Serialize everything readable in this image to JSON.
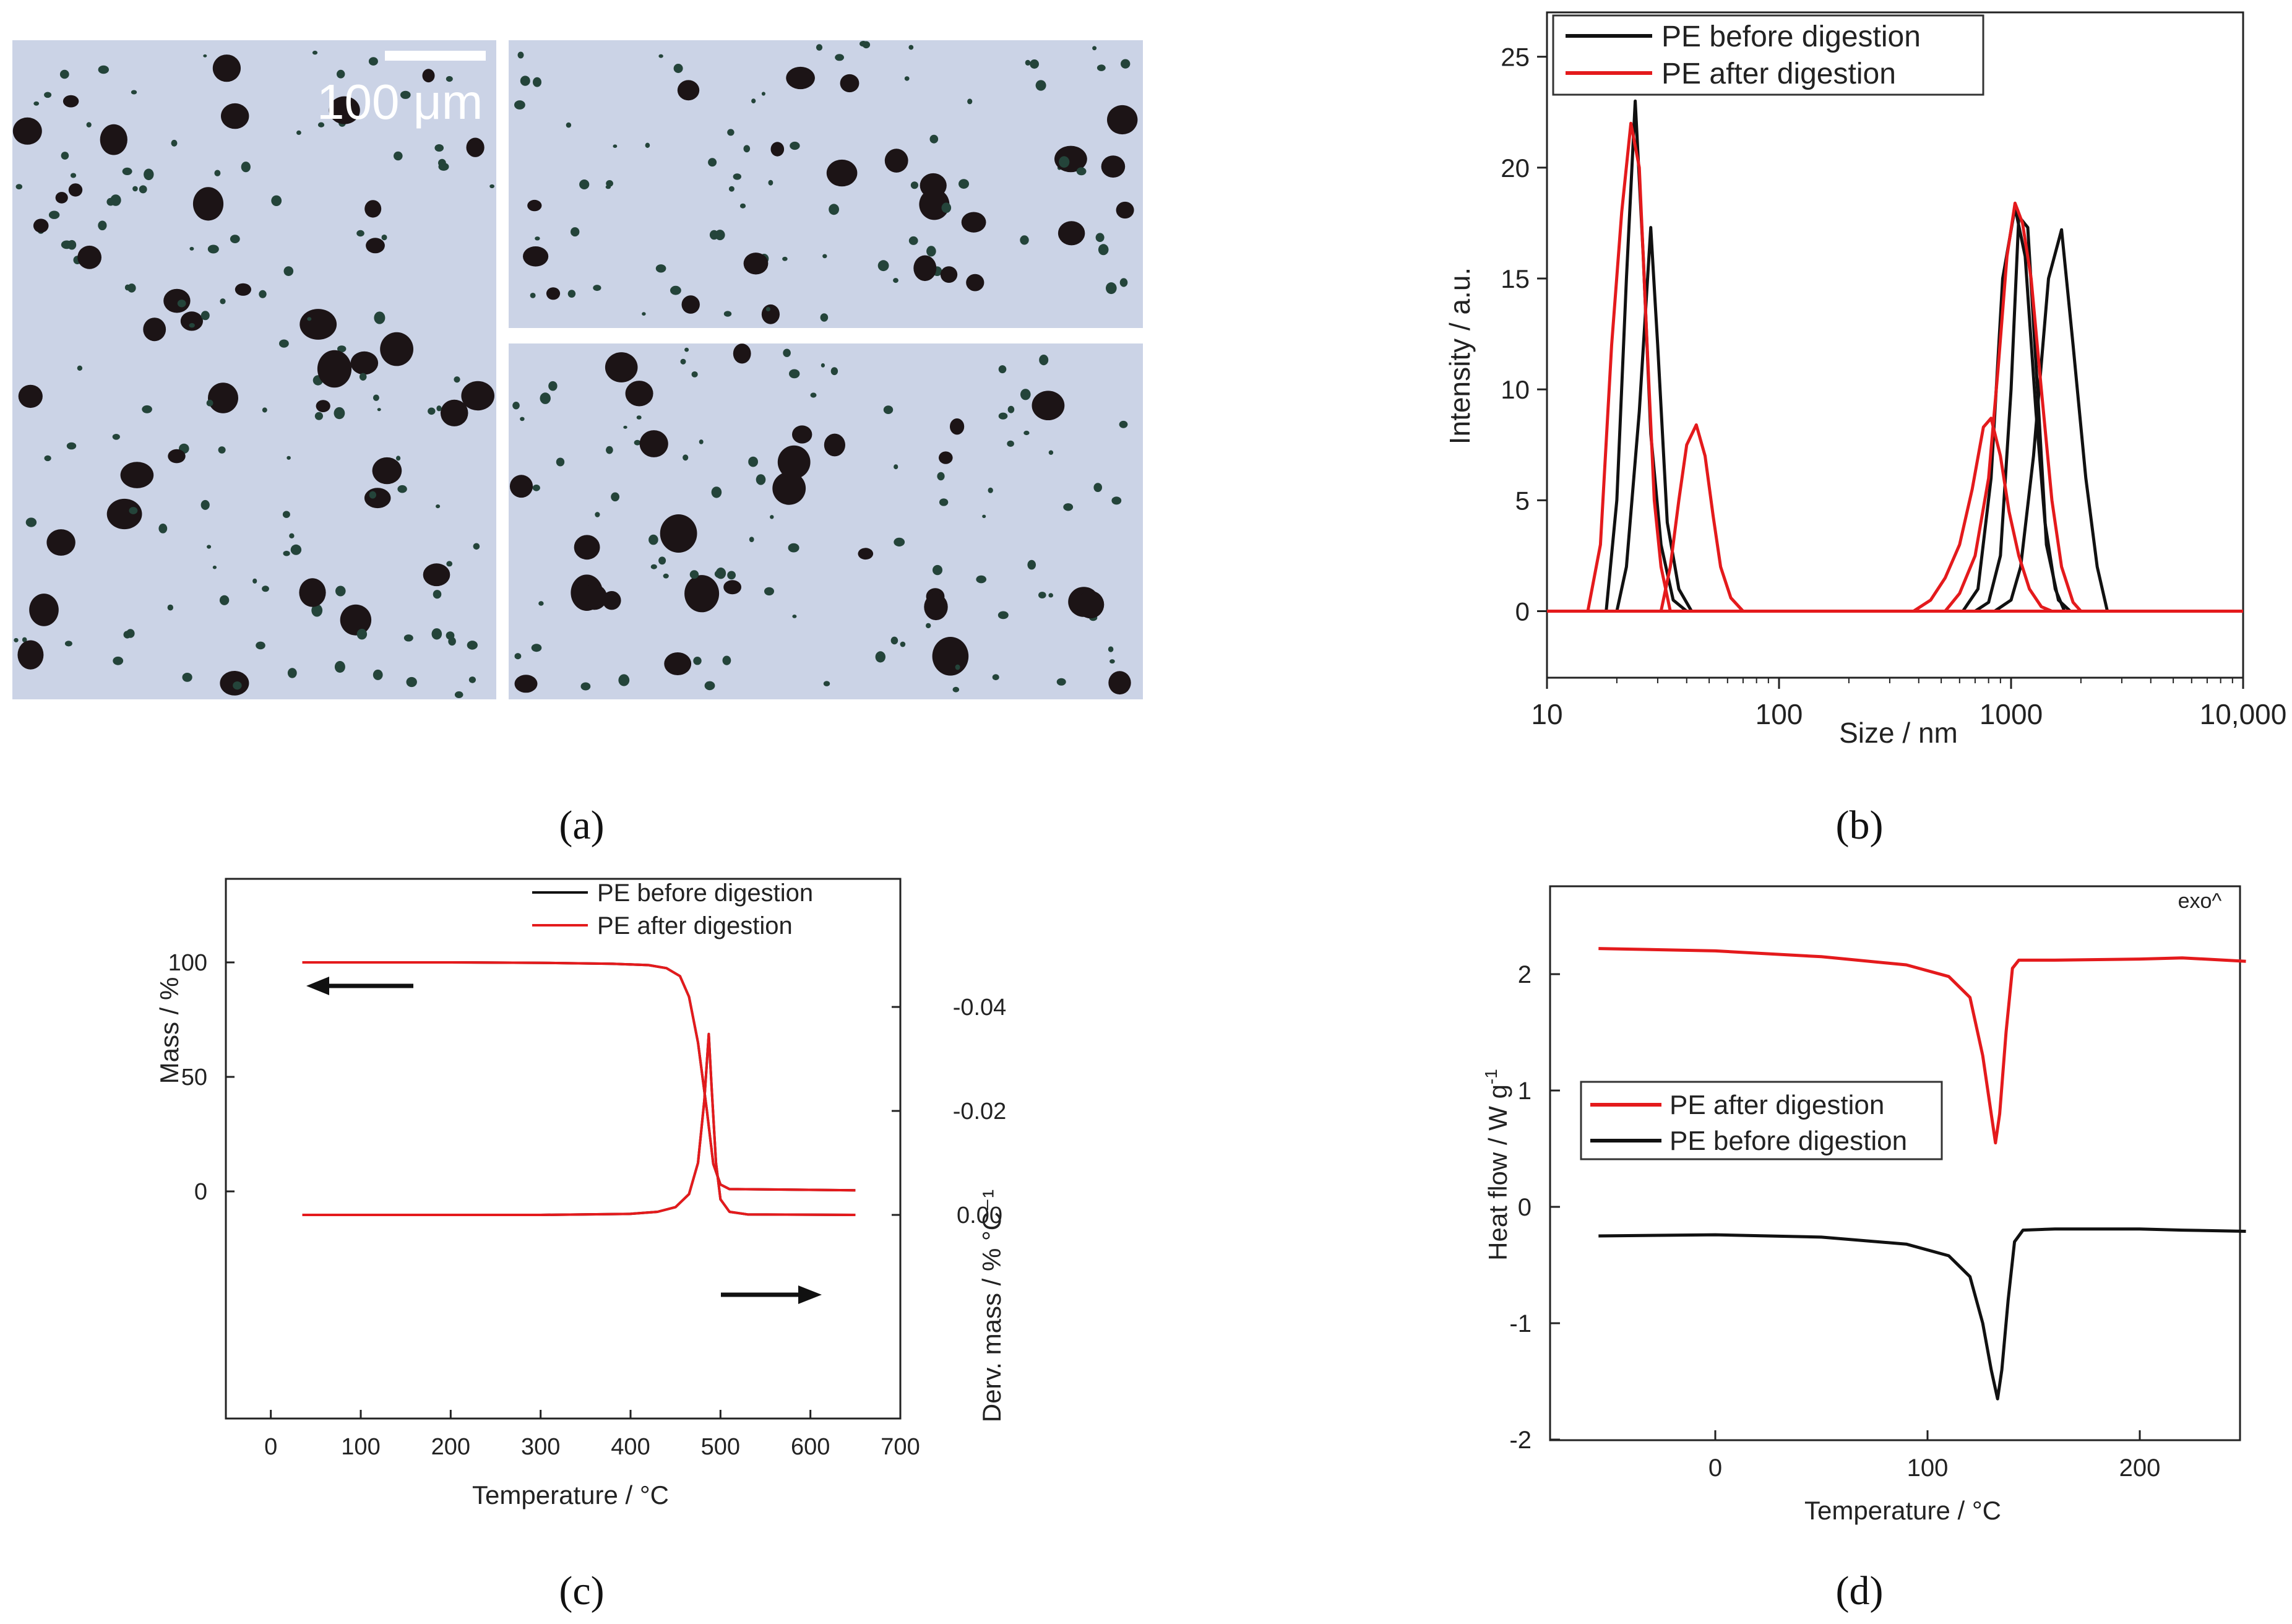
{
  "panel_labels": [
    "(a)",
    "(b)",
    "(c)",
    "(d)"
  ],
  "micrograph": {
    "scale_label": "100 μm",
    "background": "#cbd3e6",
    "particle_color": "#1c1416",
    "speck_color": "#24443a"
  },
  "colors": {
    "black": "#111111",
    "red": "#e41a1c"
  },
  "chart_data": [
    {
      "type": "line",
      "xscale": "log",
      "xlabel": "Size / nm",
      "ylabel": "Intensity / a.u.",
      "xlim": [
        10,
        10000
      ],
      "ylim": [
        -3,
        27
      ],
      "xticks": [
        10,
        100,
        1000,
        10000
      ],
      "xtick_labels": [
        "10",
        "100",
        "1000",
        "10,000"
      ],
      "yticks": [
        0,
        5,
        10,
        15,
        20,
        25
      ],
      "legend_position": "top-left",
      "series": [
        {
          "name": "PE before digestion",
          "color": "#111111",
          "lines": [
            {
              "x": [
                10,
                18,
                20,
                22,
                24,
                26,
                28,
                31,
                35,
                40,
                10000
              ],
              "y": [
                0,
                0,
                5,
                15,
                23,
                16,
                8,
                3,
                0.5,
                0,
                0
              ]
            },
            {
              "x": [
                10,
                20,
                22,
                25,
                28,
                30,
                33,
                37,
                42,
                10000
              ],
              "y": [
                0,
                0,
                2,
                9,
                17.3,
                12,
                4,
                1,
                0,
                0
              ]
            },
            {
              "x": [
                10,
                620,
                720,
                820,
                920,
                1040,
                1150,
                1280,
                1400,
                1550,
                1700,
                10000
              ],
              "y": [
                0,
                0,
                1,
                6,
                15,
                18.2,
                16,
                9,
                4,
                1,
                0,
                0
              ]
            },
            {
              "x": [
                10,
                700,
                800,
                900,
                1000,
                1080,
                1180,
                1300,
                1420,
                1600,
                1800,
                10000
              ],
              "y": [
                0,
                0,
                0.4,
                2.5,
                10,
                17.8,
                17.3,
                10,
                3,
                0.5,
                0,
                0
              ]
            },
            {
              "x": [
                10,
                850,
                1000,
                1100,
                1250,
                1450,
                1650,
                1850,
                2100,
                2350,
                2600,
                10000
              ],
              "y": [
                0,
                0,
                0.5,
                2,
                7,
                15,
                17.2,
                12,
                6,
                2,
                0,
                0
              ]
            }
          ]
        },
        {
          "name": "PE after digestion",
          "color": "#e41a1c",
          "lines": [
            {
              "x": [
                10,
                15,
                17,
                19,
                21,
                23,
                25,
                27,
                29,
                31,
                34,
                10000
              ],
              "y": [
                0,
                0,
                3,
                12,
                18,
                22,
                20,
                12,
                5,
                2,
                0,
                0
              ]
            },
            {
              "x": [
                10,
                31,
                34,
                37,
                40,
                44,
                48,
                52,
                56,
                62,
                70,
                10000
              ],
              "y": [
                0,
                0,
                2,
                5,
                7.5,
                8.4,
                7,
                4.3,
                2,
                0.6,
                0,
                0
              ]
            },
            {
              "x": [
                10,
                380,
                450,
                520,
                600,
                680,
                760,
                820,
                900,
                980,
                1080,
                1200,
                1350,
                1500,
                10000
              ],
              "y": [
                0,
                0,
                0.5,
                1.5,
                3,
                5.5,
                8.3,
                8.7,
                7,
                4.5,
                2.5,
                1,
                0.2,
                0,
                0
              ]
            },
            {
              "x": [
                10,
                520,
                600,
                700,
                800,
                880,
                960,
                1040,
                1120,
                1220,
                1350,
                1500,
                1650,
                1850,
                2000,
                10000
              ],
              "y": [
                0,
                0,
                0.8,
                2.5,
                6,
                11,
                16,
                18.4,
                17.5,
                15,
                10,
                5,
                2,
                0.4,
                0,
                0
              ]
            }
          ]
        }
      ]
    },
    {
      "type": "line",
      "xlabel": "Temperature / °C",
      "ylabel": "Mass / %",
      "y2label": "Derv. mass / % °C⁻¹",
      "xlim": [
        -50,
        700
      ],
      "xticks": [
        0,
        100,
        200,
        300,
        400,
        500,
        600,
        700
      ],
      "ylim": [
        -100,
        125
      ],
      "yticks": [
        0,
        50,
        100
      ],
      "y2ticks": [
        0.0,
        -0.02,
        -0.04
      ],
      "y2tick_labels": [
        "0.00",
        "-0.02",
        "-0.04"
      ],
      "legend_position": "top-right",
      "series": [
        {
          "name": "PE before digestion",
          "color": "#111111",
          "axis": "left",
          "x": [
            35,
            200,
            300,
            380,
            420,
            440,
            455,
            465,
            475,
            485,
            492,
            500,
            510,
            650
          ],
          "y": [
            100,
            100,
            99.8,
            99.4,
            98.8,
            97.5,
            94,
            85,
            65,
            35,
            12,
            3,
            1,
            0.5
          ]
        },
        {
          "name": "PE after digestion",
          "color": "#e41a1c",
          "axis": "left",
          "x": [
            35,
            200,
            300,
            380,
            420,
            440,
            455,
            465,
            475,
            485,
            492,
            500,
            510,
            650
          ],
          "y": [
            100,
            100,
            99.8,
            99.4,
            98.8,
            97.5,
            94,
            85,
            65,
            35,
            12,
            3,
            1,
            0.5
          ]
        },
        {
          "name": "PE before digestion",
          "color": "#111111",
          "axis": "right",
          "x": [
            35,
            300,
            400,
            430,
            450,
            465,
            475,
            482,
            487,
            490,
            495,
            500,
            510,
            530,
            650
          ],
          "y": [
            0,
            0,
            -0.0002,
            -0.0006,
            -0.0015,
            -0.004,
            -0.01,
            -0.022,
            -0.0348,
            -0.025,
            -0.01,
            -0.003,
            -0.0006,
            -0.0001,
            0
          ]
        },
        {
          "name": "PE after digestion",
          "color": "#e41a1c",
          "axis": "right",
          "x": [
            35,
            300,
            400,
            430,
            450,
            465,
            475,
            482,
            487,
            490,
            495,
            500,
            510,
            530,
            650
          ],
          "y": [
            0,
            0,
            -0.0002,
            -0.0006,
            -0.0015,
            -0.004,
            -0.01,
            -0.022,
            -0.0348,
            -0.025,
            -0.01,
            -0.003,
            -0.0006,
            -0.0001,
            0
          ]
        }
      ]
    },
    {
      "type": "line",
      "xlabel": "Temperature / °C",
      "ylabel": "Heat flow / W g",
      "ylabel_superscript": "-1",
      "annotation": "exo^",
      "xlim": [
        -60,
        250
      ],
      "xticks": [
        0,
        100,
        200
      ],
      "ylim": [
        -2,
        2.6
      ],
      "yticks": [
        2,
        1,
        0,
        -1,
        -2
      ],
      "legend_position": "center-left",
      "series": [
        {
          "name": "PE after digestion",
          "color": "#e41a1c",
          "x": [
            -55,
            0,
            50,
            90,
            110,
            120,
            126,
            130,
            132,
            134,
            137,
            140,
            143,
            160,
            200,
            220,
            250
          ],
          "y": [
            2.22,
            2.2,
            2.15,
            2.08,
            1.98,
            1.8,
            1.3,
            0.8,
            0.55,
            0.8,
            1.5,
            2.05,
            2.12,
            2.12,
            2.13,
            2.14,
            2.11
          ]
        },
        {
          "name": "PE before digestion",
          "color": "#111111",
          "x": [
            -55,
            0,
            50,
            90,
            110,
            120,
            126,
            130,
            133,
            135,
            138,
            141,
            145,
            160,
            200,
            220,
            250
          ],
          "y": [
            -0.25,
            -0.24,
            -0.26,
            -0.32,
            -0.42,
            -0.6,
            -1.0,
            -1.4,
            -1.65,
            -1.4,
            -0.8,
            -0.3,
            -0.2,
            -0.19,
            -0.19,
            -0.2,
            -0.21
          ]
        }
      ]
    }
  ]
}
